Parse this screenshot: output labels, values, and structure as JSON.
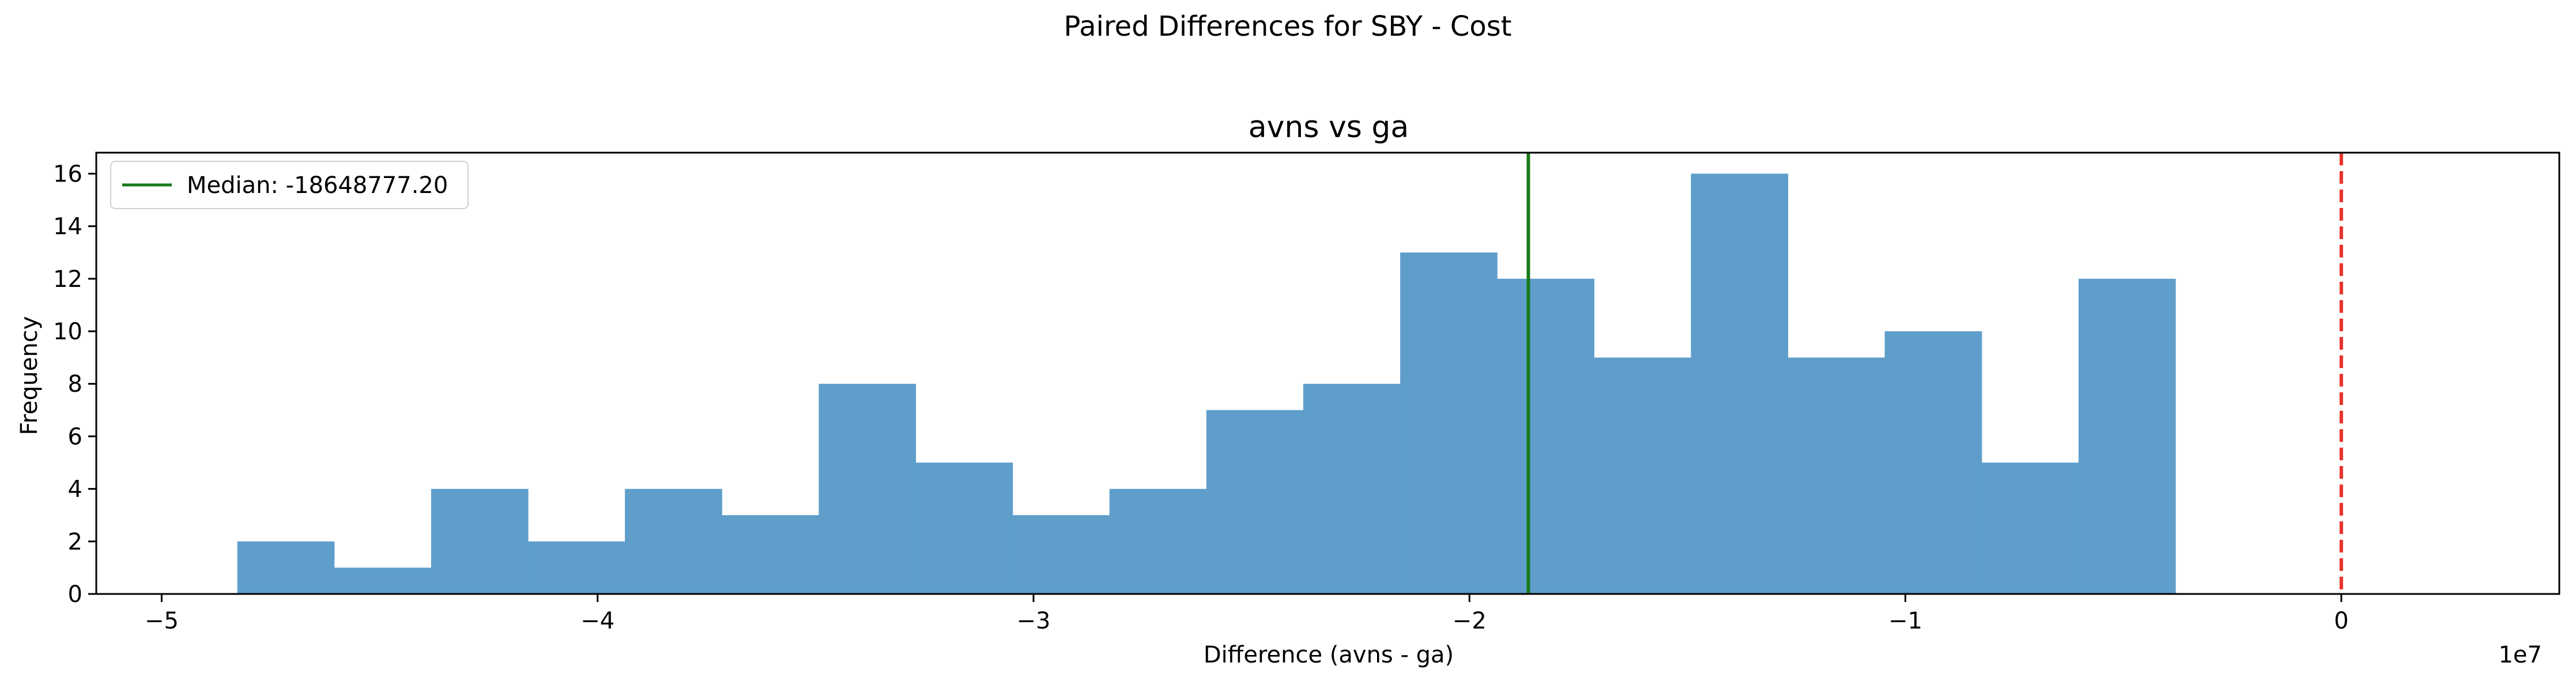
{
  "figure": {
    "suptitle": "Paired Differences for SBY - Cost"
  },
  "chart_data": {
    "type": "histogram",
    "title": "avns vs ga",
    "xlabel": "Difference (avns - ga)",
    "ylabel": "Frequency",
    "x_offset_label": "1e7",
    "x_scale_factor": 10000000,
    "xlim": [
      -5.15,
      0.5
    ],
    "ylim": [
      0,
      16.8
    ],
    "xticks": [
      -5,
      -4,
      -3,
      -2,
      -1,
      0
    ],
    "xtick_labels": [
      "−5",
      "−4",
      "−3",
      "−2",
      "−1",
      "0"
    ],
    "yticks": [
      0,
      2,
      4,
      6,
      8,
      10,
      12,
      14,
      16
    ],
    "ytick_labels": [
      "0",
      "2",
      "4",
      "6",
      "8",
      "10",
      "12",
      "14",
      "16"
    ],
    "bin_edges": [
      -4.8265,
      -4.6042,
      -4.3819,
      -4.1596,
      -3.9373,
      -3.715,
      -3.4927,
      -3.2704,
      -3.0481,
      -2.8258,
      -2.6035,
      -2.3812,
      -2.1589,
      -1.9366,
      -1.7143,
      -1.492,
      -1.2697,
      -1.0474,
      -0.8251,
      -0.6028,
      -0.3805
    ],
    "counts": [
      2,
      1,
      4,
      2,
      4,
      3,
      8,
      5,
      3,
      4,
      7,
      8,
      13,
      12,
      9,
      16,
      9,
      10,
      5,
      12
    ],
    "bar_color": "#5f9ecb",
    "median": {
      "value": -18648777.2,
      "color": "#1a7a1a",
      "legend_label": "Median: -18648777.20"
    },
    "zero_line": {
      "value": 0,
      "color": "#e8332a",
      "style": "dashed"
    },
    "legend_position": "upper left",
    "grid": false
  }
}
